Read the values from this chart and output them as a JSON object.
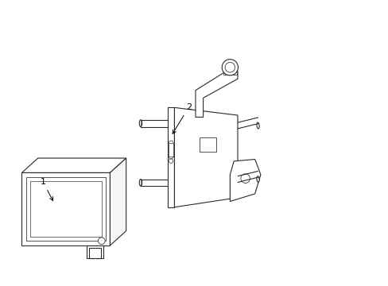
{
  "background_color": "#ffffff",
  "line_color": "#2a2a2a",
  "line_width": 0.8,
  "label_fontsize": 8,
  "fig_width": 4.89,
  "fig_height": 3.6,
  "dpi": 100,
  "xlim": [
    0,
    10
  ],
  "ylim": [
    0,
    7.35
  ]
}
